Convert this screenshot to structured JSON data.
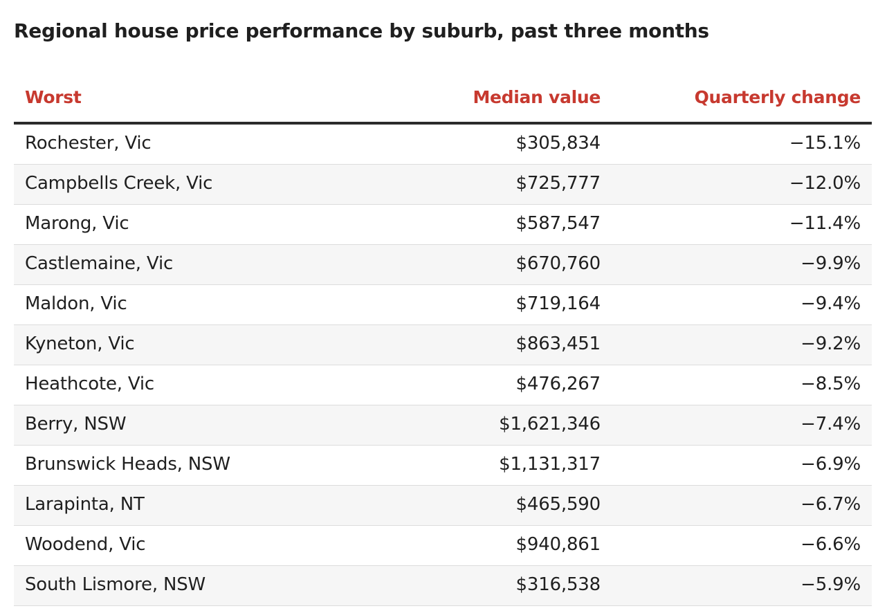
{
  "chart_data": {
    "type": "table",
    "title": "Regional house price performance by suburb, past three months",
    "columns": [
      "Worst",
      "Median value",
      "Quarterly change"
    ],
    "rows": [
      [
        "Rochester, Vic",
        "$305,834",
        "−15.1%"
      ],
      [
        "Campbells Creek, Vic",
        "$725,777",
        "−12.0%"
      ],
      [
        "Marong, Vic",
        "$587,547",
        "−11.4%"
      ],
      [
        "Castlemaine, Vic",
        "$670,760",
        "−9.9%"
      ],
      [
        "Maldon, Vic",
        "$719,164",
        "−9.4%"
      ],
      [
        "Kyneton, Vic",
        "$863,451",
        "−9.2%"
      ],
      [
        "Heathcote, Vic",
        "$476,267",
        "−8.5%"
      ],
      [
        "Berry, NSW",
        "$1,621,346",
        "−7.4%"
      ],
      [
        "Brunswick Heads, NSW",
        "$1,131,317",
        "−6.9%"
      ],
      [
        "Larapinta, NT",
        "$465,590",
        "−6.7%"
      ],
      [
        "Woodend, Vic",
        "$940,861",
        "−6.6%"
      ],
      [
        "South Lismore, NSW",
        "$316,538",
        "−5.9%"
      ]
    ],
    "colors": {
      "header_text": "#c7392f",
      "text": "#1f1f1f",
      "rule": "#2b2b2b",
      "row_stripe": "#f6f6f6",
      "row_divider": "#dcdcdc"
    }
  }
}
